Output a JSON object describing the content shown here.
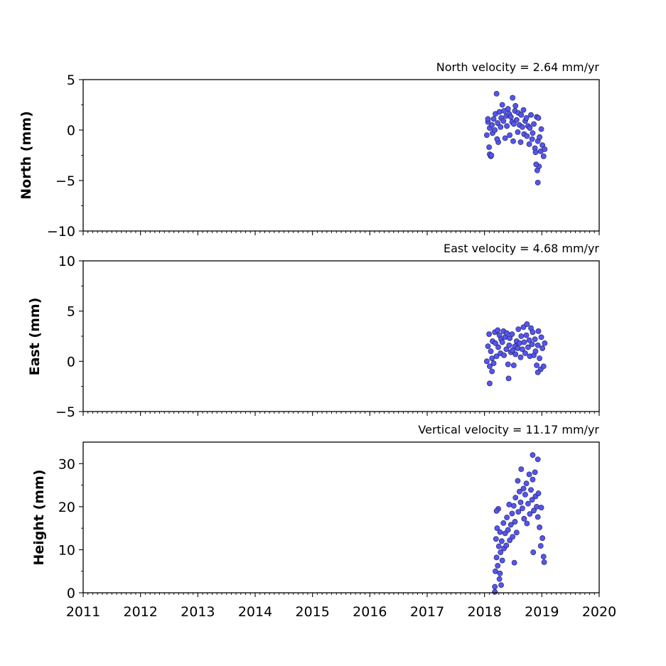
{
  "figure": {
    "background": "#ffffff",
    "marker_fill": "#5555ee",
    "marker_edge": "#1a1a55"
  },
  "chart_data": [
    {
      "type": "scatter",
      "title": "North velocity = 2.64 mm/yr",
      "ylabel": "North (mm)",
      "xlabel": "",
      "xlim": [
        2011,
        2020
      ],
      "ylim": [
        -10,
        5
      ],
      "xticks": [
        "2011",
        "2012",
        "2013",
        "2014",
        "2015",
        "2016",
        "2017",
        "2018",
        "2019",
        "2020"
      ],
      "xtick_labels_visible": false,
      "yticks": [
        "5",
        "0",
        "−5",
        "−10"
      ],
      "ytick_values": [
        5,
        0,
        -5,
        -10
      ],
      "x": [
        2018.04,
        2018.06,
        2018.08,
        2018.09,
        2018.11,
        2018.13,
        2018.14,
        2018.16,
        2018.18,
        2018.19,
        2018.21,
        2018.23,
        2018.24,
        2018.26,
        2018.28,
        2018.29,
        2018.31,
        2018.33,
        2018.34,
        2018.36,
        2018.38,
        2018.39,
        2018.41,
        2018.43,
        2018.44,
        2018.46,
        2018.48,
        2018.49,
        2018.51,
        2018.53,
        2018.54,
        2018.56,
        2018.58,
        2018.59,
        2018.61,
        2018.63,
        2018.64,
        2018.66,
        2018.68,
        2018.69,
        2018.71,
        2018.73,
        2018.74,
        2018.76,
        2018.78,
        2018.79,
        2018.81,
        2018.83,
        2018.84,
        2018.86,
        2018.88,
        2018.89,
        2018.91,
        2018.93,
        2018.94,
        2018.96,
        2018.98,
        2018.99,
        2019.01,
        2019.03,
        2019.05,
        2018.06,
        2018.09,
        2018.12,
        2018.22,
        2018.5,
        2018.92,
        2018.93,
        2018.95,
        2018.9
      ],
      "y": [
        -0.5,
        0.8,
        -1.7,
        0.2,
        -2.6,
        0.5,
        -0.3,
        1.1,
        0.0,
        1.6,
        3.6,
        0.7,
        -1.2,
        1.8,
        0.3,
        1.2,
        2.5,
        0.9,
        1.9,
        -0.8,
        1.4,
        0.4,
        2.1,
        1.6,
        -0.5,
        1.3,
        0.8,
        3.2,
        0.6,
        1.9,
        2.4,
        1.0,
        -0.2,
        1.7,
        0.5,
        -1.2,
        1.5,
        0.3,
        2.0,
        -0.4,
        0.9,
        1.2,
        -0.6,
        0.4,
        -1.4,
        0.2,
        1.5,
        -0.9,
        -0.3,
        0.6,
        -1.8,
        -2.2,
        1.3,
        -1.1,
        1.2,
        -0.7,
        -2.1,
        0.1,
        -1.5,
        -2.6,
        -1.9,
        1.1,
        -2.4,
        -2.5,
        -0.9,
        -1.1,
        -4.0,
        -5.2,
        -3.6,
        -3.4
      ]
    },
    {
      "type": "scatter",
      "title": "East velocity = 4.68 mm/yr",
      "ylabel": "East (mm)",
      "xlabel": "",
      "xlim": [
        2011,
        2020
      ],
      "ylim": [
        -5,
        10
      ],
      "xticks": [
        "2011",
        "2012",
        "2013",
        "2014",
        "2015",
        "2016",
        "2017",
        "2018",
        "2019",
        "2020"
      ],
      "xtick_labels_visible": false,
      "yticks": [
        "10",
        "5",
        "0",
        "−5"
      ],
      "ytick_values": [
        10,
        5,
        0,
        -5
      ],
      "x": [
        2018.04,
        2018.06,
        2018.08,
        2018.09,
        2018.11,
        2018.13,
        2018.14,
        2018.16,
        2018.18,
        2018.19,
        2018.21,
        2018.23,
        2018.24,
        2018.26,
        2018.28,
        2018.29,
        2018.31,
        2018.33,
        2018.34,
        2018.36,
        2018.38,
        2018.39,
        2018.41,
        2018.43,
        2018.44,
        2018.46,
        2018.48,
        2018.49,
        2018.51,
        2018.53,
        2018.54,
        2018.56,
        2018.58,
        2018.59,
        2018.61,
        2018.63,
        2018.64,
        2018.66,
        2018.68,
        2018.69,
        2018.71,
        2018.73,
        2018.74,
        2018.76,
        2018.78,
        2018.79,
        2018.81,
        2018.83,
        2018.84,
        2018.86,
        2018.88,
        2018.89,
        2018.91,
        2018.93,
        2018.94,
        2018.96,
        2018.98,
        2018.99,
        2019.01,
        2019.03,
        2019.05,
        2018.09,
        2018.42,
        2018.13,
        2018.93
      ],
      "y": [
        0.0,
        1.5,
        2.7,
        -0.5,
        1.0,
        0.3,
        2.0,
        -0.2,
        2.9,
        1.8,
        0.5,
        3.1,
        1.4,
        2.6,
        0.8,
        2.2,
        1.9,
        3.0,
        0.6,
        2.4,
        1.2,
        2.8,
        -0.3,
        1.6,
        2.3,
        0.9,
        2.7,
        1.1,
        -0.4,
        1.5,
        0.7,
        2.0,
        1.3,
        3.2,
        1.8,
        0.4,
        2.5,
        1.2,
        3.4,
        1.9,
        0.8,
        2.6,
        3.7,
        1.4,
        2.1,
        0.5,
        3.3,
        1.7,
        2.9,
        0.6,
        2.2,
        1.0,
        -0.4,
        1.6,
        3.0,
        0.3,
        -0.8,
        2.4,
        1.3,
        -0.5,
        1.8,
        -2.2,
        -1.7,
        -1.0,
        -1.1
      ]
    },
    {
      "type": "scatter",
      "title": "Vertical velocity = 11.17 mm/yr",
      "ylabel": "Height (mm)",
      "xlabel": "",
      "xlim": [
        2011,
        2020
      ],
      "ylim": [
        0,
        35
      ],
      "xticks": [
        "2011",
        "2012",
        "2013",
        "2014",
        "2015",
        "2016",
        "2017",
        "2018",
        "2019",
        "2020"
      ],
      "xtick_labels_visible": true,
      "yticks": [
        "30",
        "20",
        "10",
        "0"
      ],
      "ytick_values": [
        30,
        20,
        10,
        0
      ],
      "x": [
        2018.18,
        2018.19,
        2018.2,
        2018.21,
        2018.22,
        2018.23,
        2018.24,
        2018.25,
        2018.26,
        2018.27,
        2018.28,
        2018.29,
        2018.3,
        2018.31,
        2018.33,
        2018.34,
        2018.36,
        2018.38,
        2018.39,
        2018.41,
        2018.43,
        2018.44,
        2018.46,
        2018.48,
        2018.49,
        2018.51,
        2018.53,
        2018.54,
        2018.56,
        2018.58,
        2018.59,
        2018.61,
        2018.63,
        2018.64,
        2018.66,
        2018.68,
        2018.69,
        2018.71,
        2018.73,
        2018.74,
        2018.76,
        2018.78,
        2018.79,
        2018.81,
        2018.83,
        2018.84,
        2018.86,
        2018.88,
        2018.89,
        2018.91,
        2018.93,
        2018.94,
        2018.96,
        2018.98,
        2018.99,
        2019.01,
        2019.03,
        2019.04,
        2018.18,
        2018.27,
        2018.84,
        2018.93,
        2018.52,
        2018.21,
        2018.85
      ],
      "y": [
        1.4,
        5.0,
        12.5,
        8.2,
        15.0,
        6.3,
        19.5,
        10.8,
        3.2,
        14.1,
        9.4,
        1.8,
        12.0,
        7.5,
        16.2,
        10.3,
        13.8,
        11.0,
        17.5,
        14.6,
        20.5,
        12.2,
        15.8,
        18.4,
        13.0,
        20.2,
        16.5,
        22.1,
        14.0,
        26.0,
        18.8,
        23.5,
        21.0,
        28.7,
        19.6,
        24.2,
        17.2,
        22.8,
        25.4,
        16.1,
        20.7,
        27.5,
        18.3,
        23.9,
        21.6,
        26.3,
        19.1,
        28.0,
        22.4,
        20.0,
        17.6,
        23.1,
        15.2,
        10.9,
        19.8,
        12.7,
        8.4,
        7.1,
        0.2,
        4.5,
        32.0,
        31.0,
        7.0,
        19.0,
        9.4
      ]
    }
  ]
}
